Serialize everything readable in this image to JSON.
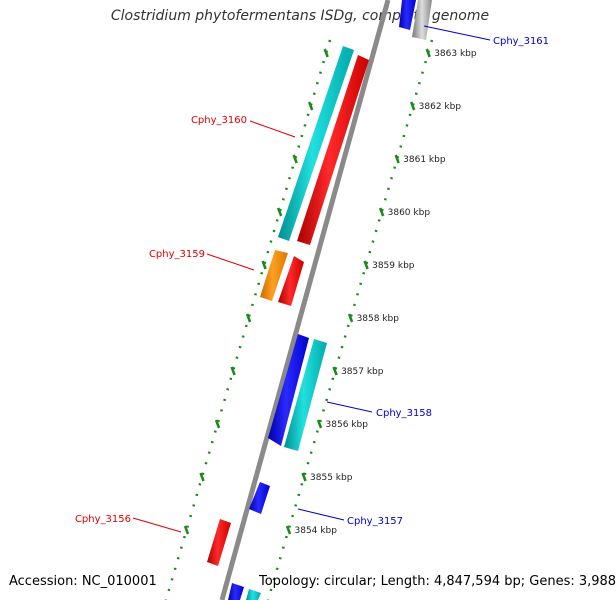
{
  "title": "Clostridium phytofermentans ISDg, complete genome",
  "accession": "Accession: NC_010001",
  "topology": "Topology: circular; Length: 4,847,594 bp; Genes: 3,988",
  "colors": {
    "backbone": "#8a8a8a",
    "tick": "#1a8a1a",
    "forward_label": "#dd0000",
    "reverse_label": "#0000cc",
    "red": "#ff0000",
    "cyan": "#00cccc",
    "blue": "#0000ff",
    "orange": "#ff8800"
  },
  "ticks": [
    {
      "label": "3863 kbp"
    },
    {
      "label": "3862 kbp"
    },
    {
      "label": "3861 kbp"
    },
    {
      "label": "3860 kbp"
    },
    {
      "label": "3859 kbp"
    },
    {
      "label": "3858 kbp"
    },
    {
      "label": "3857 kbp"
    },
    {
      "label": "3856 kbp"
    },
    {
      "label": "3855 kbp"
    },
    {
      "label": "3854 kbp"
    }
  ],
  "gene_labels": [
    {
      "id": "Cphy_3161",
      "strand": "reverse"
    },
    {
      "id": "Cphy_3160",
      "strand": "forward"
    },
    {
      "id": "Cphy_3159",
      "strand": "forward"
    },
    {
      "id": "Cphy_3158",
      "strand": "reverse"
    },
    {
      "id": "Cphy_3157",
      "strand": "reverse"
    },
    {
      "id": "Cphy_3156",
      "strand": "forward"
    }
  ]
}
